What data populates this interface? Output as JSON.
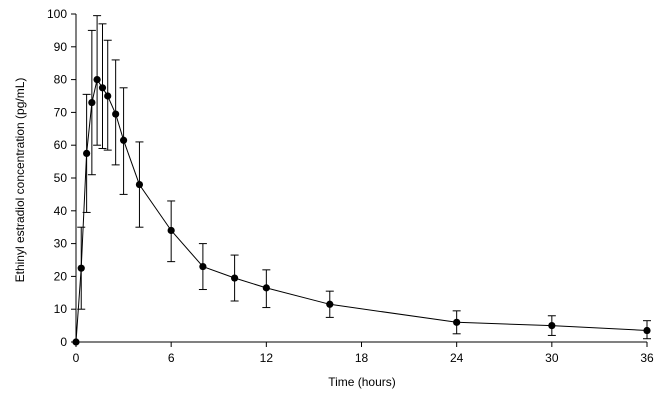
{
  "chart_data": {
    "type": "line",
    "title": "",
    "xlabel": "Time (hours)",
    "ylabel": "Ethinyl estradiol concentration (pg/mL)",
    "xlim": [
      0,
      36
    ],
    "ylim": [
      0,
      100
    ],
    "x_ticks": [
      0,
      6,
      12,
      18,
      24,
      30,
      36
    ],
    "y_ticks": [
      0,
      10,
      20,
      30,
      40,
      50,
      60,
      70,
      80,
      90,
      100
    ],
    "grid": false,
    "legend": "none",
    "colors": {
      "line": "#000000",
      "marker": "#000000"
    },
    "series": [
      {
        "x": [
          0,
          0.33,
          0.67,
          1.0,
          1.33,
          1.67,
          2.0,
          2.5,
          3.0,
          4.0,
          6.0,
          8.0,
          10.0,
          12.0,
          16.0,
          24.0,
          30.0,
          36.0
        ],
        "values": [
          0,
          22.5,
          57.5,
          73,
          80,
          77.5,
          75,
          69.5,
          61.5,
          48,
          34,
          23,
          19.5,
          16.5,
          11.5,
          6,
          5,
          3.5
        ],
        "err_low": [
          0,
          10,
          39.5,
          51,
          60,
          59,
          58.5,
          54,
          45,
          35,
          24.5,
          16,
          12.5,
          10.5,
          7.5,
          2.5,
          2,
          1
        ],
        "err_high": [
          0,
          35,
          75.5,
          95,
          99.5,
          97,
          92,
          86,
          77.5,
          61,
          43,
          30,
          26.5,
          22,
          15.5,
          9.5,
          8,
          6.5
        ]
      }
    ]
  }
}
